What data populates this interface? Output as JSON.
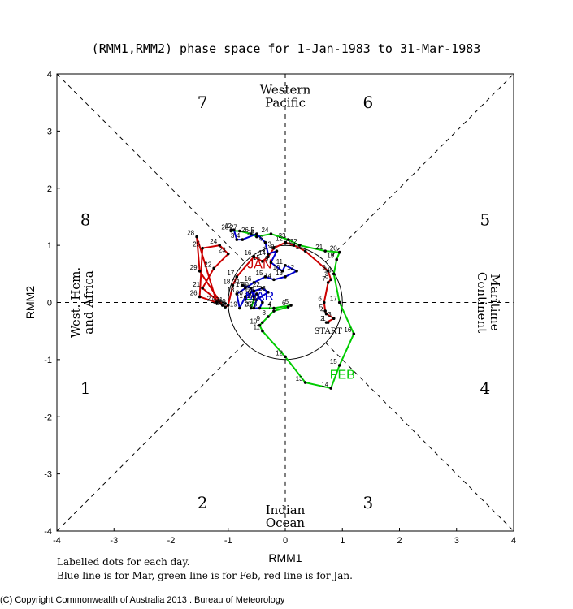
{
  "chart_data": {
    "type": "line",
    "title": "(RMM1,RMM2) phase space for  1-Jan-1983 to 31-Mar-1983",
    "xlabel": "RMM1",
    "ylabel": "RMM2",
    "xlim": [
      -4,
      4
    ],
    "ylim": [
      -4,
      4
    ],
    "x_ticks": [
      "-4",
      "-3",
      "-2",
      "-1",
      "0",
      "1",
      "2",
      "3",
      "4"
    ],
    "y_ticks": [
      "-4",
      "-3",
      "-2",
      "-1",
      "0",
      "1",
      "2",
      "3",
      "4"
    ],
    "phases": [
      {
        "label": "1",
        "x": -3.5,
        "y": -1.5
      },
      {
        "label": "2",
        "x": -1.45,
        "y": -3.5
      },
      {
        "label": "3",
        "x": 1.45,
        "y": -3.5
      },
      {
        "label": "4",
        "x": 3.5,
        "y": -1.5
      },
      {
        "label": "5",
        "x": 3.5,
        "y": 1.45
      },
      {
        "label": "6",
        "x": 1.45,
        "y": 3.5
      },
      {
        "label": "7",
        "x": -1.45,
        "y": 3.5
      },
      {
        "label": "8",
        "x": -3.5,
        "y": 1.45
      }
    ],
    "regions": {
      "top": [
        "Western",
        "Pacific"
      ],
      "bottom": [
        "Indian",
        "Ocean"
      ],
      "left": [
        "West. Hem.",
        "and Africa"
      ],
      "right": [
        "Maritime",
        "Continent"
      ]
    },
    "series": [
      {
        "name": "Jan",
        "color": "#cc0000",
        "label": "JAN",
        "label_pos": [
          -0.45,
          0.68
        ],
        "start_label": "START",
        "points": [
          [
            0.75,
            -0.35
          ],
          [
            0.72,
            -0.35
          ],
          [
            0.85,
            -0.28
          ],
          [
            0.72,
            -0.2
          ],
          [
            0.7,
            -0.15
          ],
          [
            0.68,
            0.0
          ],
          [
            0.75,
            0.35
          ],
          [
            0.8,
            0.4
          ],
          [
            0.75,
            0.55
          ],
          [
            0.35,
            0.9
          ],
          [
            0.15,
            1.0
          ],
          [
            0.0,
            1.05
          ],
          [
            -0.2,
            0.95
          ],
          [
            -0.3,
            0.8
          ],
          [
            -0.4,
            0.72
          ],
          [
            -0.55,
            0.8
          ],
          [
            -0.85,
            0.45
          ],
          [
            -0.92,
            0.3
          ],
          [
            -1.0,
            -0.05
          ],
          [
            -1.05,
            -0.08
          ],
          [
            -1.45,
            0.25
          ],
          [
            -1.25,
            0.6
          ],
          [
            -1.0,
            0.85
          ],
          [
            -1.15,
            1.0
          ],
          [
            -1.45,
            0.95
          ],
          [
            -1.5,
            0.1
          ],
          [
            -1.2,
            0.0
          ],
          [
            -1.55,
            1.15
          ],
          [
            -1.5,
            0.55
          ],
          [
            -1.1,
            -0.05
          ],
          [
            -1.05,
            -0.02
          ]
        ]
      },
      {
        "name": "Feb",
        "color": "#00cc00",
        "label": "FEB",
        "label_pos": [
          1.0,
          -1.25
        ],
        "points": [
          [
            -0.7,
            0.05
          ],
          [
            -0.55,
            0.05
          ],
          [
            -0.6,
            -0.1
          ],
          [
            -0.2,
            -0.1
          ],
          [
            0.1,
            -0.05
          ],
          [
            0.05,
            -0.08
          ],
          [
            -0.2,
            -0.15
          ],
          [
            -0.3,
            -0.25
          ],
          [
            -0.4,
            -0.35
          ],
          [
            -0.45,
            -0.4
          ],
          [
            -0.4,
            -0.5
          ],
          [
            0.0,
            -0.95
          ],
          [
            0.35,
            -1.4
          ],
          [
            0.8,
            -1.5
          ],
          [
            0.95,
            -1.1
          ],
          [
            1.2,
            -0.55
          ],
          [
            0.95,
            0.0
          ],
          [
            0.85,
            0.5
          ],
          [
            0.9,
            0.75
          ],
          [
            0.95,
            0.88
          ],
          [
            0.7,
            0.9
          ],
          [
            0.25,
            1.0
          ],
          [
            0.05,
            1.1
          ],
          [
            -0.25,
            1.2
          ],
          [
            -0.5,
            1.15
          ],
          [
            -0.6,
            1.2
          ],
          [
            -0.8,
            1.25
          ],
          [
            -0.95,
            1.25
          ]
        ]
      },
      {
        "name": "Mar",
        "color": "#0000cc",
        "label": "MAR",
        "label_pos": [
          -0.45,
          0.12
        ],
        "points": [
          [
            -0.95,
            1.27
          ],
          [
            -0.9,
            1.27
          ],
          [
            -0.85,
            1.1
          ],
          [
            -0.75,
            1.1
          ],
          [
            -0.5,
            1.2
          ],
          [
            -0.35,
            1.05
          ],
          [
            -0.3,
            0.85
          ],
          [
            -0.15,
            0.9
          ],
          [
            -0.25,
            0.7
          ],
          [
            -0.05,
            0.55
          ],
          [
            0.0,
            0.65
          ],
          [
            0.2,
            0.55
          ],
          [
            0.0,
            0.45
          ],
          [
            -0.2,
            0.4
          ],
          [
            -0.35,
            0.45
          ],
          [
            -0.55,
            0.35
          ],
          [
            -0.7,
            0.25
          ],
          [
            -0.85,
            0.15
          ],
          [
            -0.8,
            -0.1
          ],
          [
            -0.7,
            0.1
          ],
          [
            -0.55,
            0.2
          ],
          [
            -0.4,
            0.25
          ],
          [
            -0.3,
            0.18
          ],
          [
            -0.5,
            0.05
          ],
          [
            -0.55,
            -0.1
          ],
          [
            -0.45,
            -0.1
          ],
          [
            -0.4,
            0.0
          ],
          [
            -0.5,
            0.15
          ],
          [
            -0.55,
            0.1
          ],
          [
            -0.6,
            0.25
          ],
          [
            -0.75,
            0.3
          ]
        ]
      }
    ]
  },
  "footer": {
    "line1": "Labelled dots for each day.",
    "line2": "Blue line is for Mar, green line is for Feb, red line is for Jan."
  },
  "copyright": "(C) Copyright Commonwealth of Australia 2013 . Bureau of Meteorology"
}
